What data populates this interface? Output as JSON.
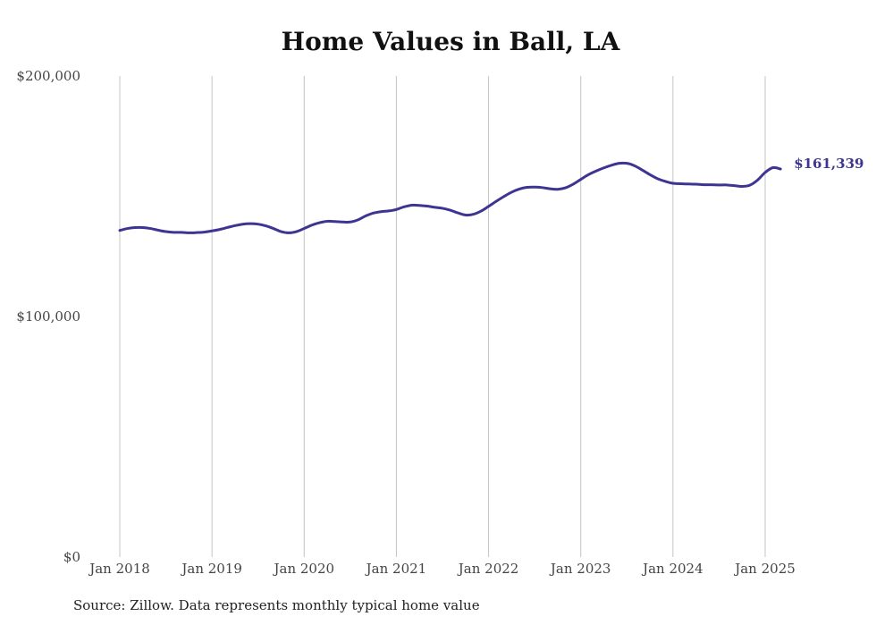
{
  "chart_data": {
    "type": "line",
    "title": "Home Values in Ball, LA",
    "xlabel": "",
    "ylabel": "",
    "ylim": [
      0,
      200000
    ],
    "yticks": [
      0,
      100000,
      200000
    ],
    "ytick_labels": [
      "$0",
      "$100,000",
      "$200,000"
    ],
    "xticks": [
      "2018-01",
      "2019-01",
      "2020-01",
      "2021-01",
      "2022-01",
      "2023-01",
      "2024-01",
      "2025-01"
    ],
    "xtick_labels": [
      "Jan 2018",
      "Jan 2019",
      "Jan 2020",
      "Jan 2021",
      "Jan 2022",
      "Jan 2023",
      "Jan 2024",
      "Jan 2025"
    ],
    "x_range": [
      "2018-01",
      "2025-03"
    ],
    "grid": "vertical",
    "line_color": "#3d3591",
    "end_label": "$161,339",
    "series": [
      {
        "x": [
          "2018-01",
          "2018-02",
          "2018-03",
          "2018-04",
          "2018-05",
          "2018-06",
          "2018-07",
          "2018-08",
          "2018-09",
          "2018-10",
          "2018-11",
          "2018-12",
          "2019-01",
          "2019-02",
          "2019-03",
          "2019-04",
          "2019-05",
          "2019-06",
          "2019-07",
          "2019-08",
          "2019-09",
          "2019-10",
          "2019-11",
          "2019-12",
          "2020-01",
          "2020-02",
          "2020-03",
          "2020-04",
          "2020-05",
          "2020-06",
          "2020-07",
          "2020-08",
          "2020-09",
          "2020-10",
          "2020-11",
          "2020-12",
          "2021-01",
          "2021-02",
          "2021-03",
          "2021-04",
          "2021-05",
          "2021-06",
          "2021-07",
          "2021-08",
          "2021-09",
          "2021-10",
          "2021-11",
          "2021-12",
          "2022-01",
          "2022-02",
          "2022-03",
          "2022-04",
          "2022-05",
          "2022-06",
          "2022-07",
          "2022-08",
          "2022-09",
          "2022-10",
          "2022-11",
          "2022-12",
          "2023-01",
          "2023-02",
          "2023-03",
          "2023-04",
          "2023-05",
          "2023-06",
          "2023-07",
          "2023-08",
          "2023-09",
          "2023-10",
          "2023-11",
          "2023-12",
          "2024-01",
          "2024-02",
          "2024-03",
          "2024-04",
          "2024-05",
          "2024-06",
          "2024-07",
          "2024-08",
          "2024-09",
          "2024-10",
          "2024-11",
          "2024-12",
          "2025-01",
          "2025-02",
          "2025-03"
        ],
        "values": [
          135800,
          136600,
          137000,
          137000,
          136600,
          135900,
          135300,
          135000,
          135000,
          134800,
          134900,
          135100,
          135600,
          136200,
          137000,
          137800,
          138400,
          138600,
          138400,
          137700,
          136600,
          135300,
          134800,
          135300,
          136600,
          138000,
          139000,
          139600,
          139500,
          139300,
          139300,
          140200,
          141800,
          143000,
          143600,
          143900,
          144500,
          145600,
          146300,
          146200,
          145900,
          145400,
          145000,
          144200,
          143100,
          142200,
          142500,
          143800,
          145800,
          147900,
          149900,
          151700,
          153000,
          153700,
          153800,
          153600,
          153100,
          152900,
          153500,
          155000,
          157000,
          159000,
          160500,
          161800,
          162900,
          163700,
          163700,
          162700,
          160900,
          159000,
          157300,
          156200,
          155400,
          155200,
          155100,
          155000,
          154800,
          154800,
          154700,
          154700,
          154400,
          154100,
          154600,
          156700,
          159900,
          161900,
          161339
        ]
      }
    ]
  },
  "source": "Source: Zillow. Data represents monthly typical home value"
}
